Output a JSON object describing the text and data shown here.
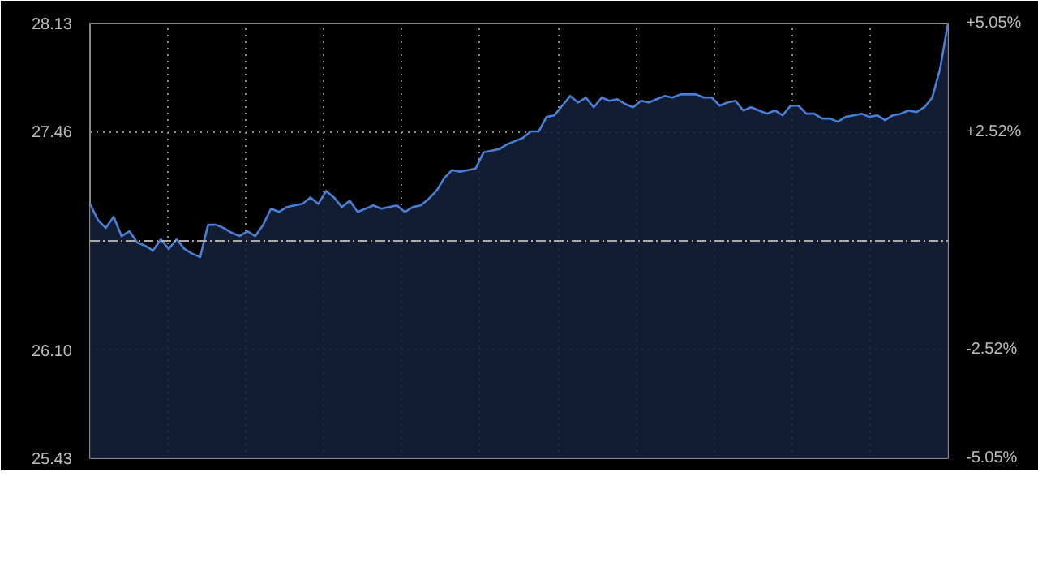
{
  "chart_data": {
    "type": "area",
    "categories": [
      null,
      null,
      null,
      null,
      null,
      null,
      null,
      null,
      null,
      null,
      null,
      null,
      null,
      null,
      null,
      null,
      null,
      null,
      null,
      null,
      null,
      null,
      null,
      null,
      null,
      null,
      null,
      null,
      null,
      null,
      null,
      null,
      null,
      null,
      null,
      null,
      null,
      null,
      null,
      null,
      null,
      null,
      null,
      null,
      null,
      null,
      null,
      null,
      null,
      null,
      null,
      null,
      null,
      null,
      null,
      null,
      null,
      null,
      null,
      null,
      null,
      null,
      null,
      null,
      null,
      null,
      null,
      null,
      null,
      null,
      null,
      null,
      null,
      null,
      null,
      null,
      null,
      null,
      null,
      null,
      null,
      null,
      null,
      null,
      null,
      null,
      null,
      null,
      null,
      null,
      null,
      null,
      null,
      null,
      null,
      null,
      null,
      null,
      null,
      null,
      null,
      null,
      null,
      null,
      null,
      null,
      null,
      null,
      null,
      null
    ],
    "series": [
      {
        "color": "#4a7fd8",
        "values": [
          27.01,
          26.91,
          26.86,
          26.93,
          26.81,
          26.84,
          26.77,
          26.75,
          26.72,
          26.79,
          26.73,
          26.79,
          26.73,
          26.7,
          26.68,
          26.88,
          26.88,
          26.86,
          26.83,
          26.81,
          26.84,
          26.81,
          26.88,
          26.98,
          26.96,
          26.99,
          27.0,
          27.01,
          27.05,
          27.01,
          27.09,
          27.05,
          26.99,
          27.03,
          26.96,
          26.98,
          27.0,
          26.98,
          26.99,
          27.0,
          26.96,
          26.99,
          27.0,
          27.04,
          27.09,
          27.17,
          27.22,
          27.21,
          27.22,
          27.23,
          27.33,
          27.34,
          27.35,
          27.38,
          27.4,
          27.42,
          27.46,
          27.46,
          27.55,
          27.56,
          27.62,
          27.68,
          27.64,
          27.67,
          27.61,
          27.67,
          27.65,
          27.66,
          27.63,
          27.61,
          27.65,
          27.64,
          27.66,
          27.68,
          27.67,
          27.69,
          27.69,
          27.69,
          27.67,
          27.67,
          27.62,
          27.64,
          27.65,
          27.59,
          27.61,
          27.59,
          27.57,
          27.59,
          27.56,
          27.62,
          27.62,
          27.57,
          27.57,
          27.54,
          27.54,
          27.52,
          27.55,
          27.56,
          27.57,
          27.55,
          27.56,
          27.53,
          27.56,
          27.57,
          27.59,
          27.58,
          27.61,
          27.67,
          27.85,
          28.13
        ]
      }
    ],
    "ylim": [
      25.43,
      28.13
    ],
    "yticks": [
      28.13,
      27.46,
      {
        "value": 26.1,
        "label": "26.10"
      },
      25.43
    ],
    "y2lim": [
      -5.05,
      5.05
    ],
    "y2ticks": [
      {
        "value": 5.05,
        "label": "+5.05%"
      },
      {
        "value": 2.52,
        "label": "+2.52%"
      },
      {
        "value": -2.52,
        "label": "-2.52%"
      },
      {
        "value": -5.05,
        "label": "-5.05%"
      }
    ],
    "ref_lines": [
      {
        "axis": "y",
        "value": 26.78,
        "color": "#aaaaaa",
        "line_style": "dashdot"
      }
    ],
    "grid": true
  }
}
